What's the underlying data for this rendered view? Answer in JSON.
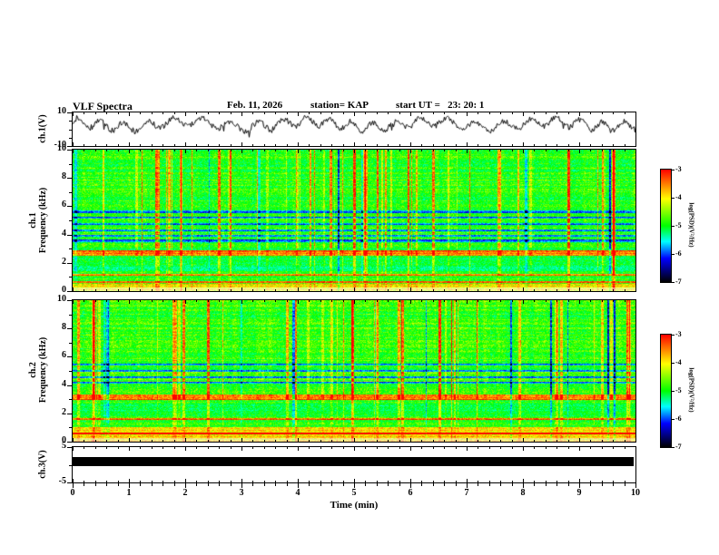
{
  "header": {
    "title": "VLF Spectra",
    "date": "Feb. 11, 2026",
    "station": "station= KAP",
    "start_ut": "start UT =   23: 20: 1"
  },
  "x_axis": {
    "label": "Time (min)",
    "min": 0,
    "max": 10,
    "major_ticks": [
      0,
      1,
      2,
      3,
      4,
      5,
      6,
      7,
      8,
      9,
      10
    ],
    "minor_step": 0.2
  },
  "colorbars": [
    {
      "label": "log(PSD)(V²/Hz)",
      "ticks": [
        -3,
        -4,
        -5,
        -6,
        -7
      ]
    },
    {
      "label": "log(PSD)(V²/Hz)",
      "ticks": [
        -3,
        -4,
        -5,
        -6,
        -7
      ]
    }
  ],
  "colormap": {
    "stops_low_to_high": [
      "#000000",
      "#0000ff",
      "#00ffff",
      "#00ff00",
      "#ffff00",
      "#ff0000"
    ]
  },
  "chart_data": [
    {
      "type": "line",
      "name": "ch1-waveform",
      "ylabel": "ch.1(V)",
      "ylim": [
        -10,
        10
      ],
      "ytick_major": [
        10,
        -10
      ],
      "ytick_minor": [
        5,
        0,
        -5
      ],
      "description": "dense noisy VLF amplitude trace oscillating roughly between -3 and 9 V over 10 minutes"
    },
    {
      "type": "heatmap",
      "name": "ch1-spectrogram",
      "ylabel_lines": [
        "ch.1",
        "Frequency (kHz)"
      ],
      "ylim": [
        0,
        10
      ],
      "ytick_major": [
        0,
        2,
        4,
        6,
        8,
        10
      ],
      "ytick_minor": [
        1,
        3,
        5,
        7,
        9
      ],
      "xlim": [
        0,
        10
      ],
      "features": {
        "base_level": 0.55,
        "red_bands_khz": [
          [
            2.5,
            2.85
          ],
          [
            1.08,
            1.22
          ],
          [
            0.58,
            0.68
          ]
        ],
        "blue_lines_khz": [
          3.55,
          3.9,
          4.3,
          4.75,
          5.2,
          5.6
        ],
        "bright_below_khz": 0.5,
        "dim_band_khz": [
          1.35,
          2.4
        ],
        "vertical_streaks": 60
      }
    },
    {
      "type": "heatmap",
      "name": "ch2-spectrogram",
      "ylabel_lines": [
        "ch.2",
        "Frequency (kHz)"
      ],
      "ylim": [
        0,
        10
      ],
      "ytick_major": [
        0,
        2,
        4,
        6,
        8,
        10
      ],
      "ytick_minor": [
        1,
        3,
        5,
        7,
        9
      ],
      "xlim": [
        0,
        10
      ],
      "features": {
        "base_level": 0.56,
        "red_bands_khz": [
          [
            2.95,
            3.35
          ],
          [
            1.5,
            1.62
          ],
          [
            0.5,
            0.62
          ]
        ],
        "blue_lines_khz": [
          4.15,
          4.55,
          5.0,
          5.45
        ],
        "bright_below_khz": 1.0,
        "dim_band_khz": [
          1.8,
          2.7
        ],
        "vertical_streaks": 55
      }
    },
    {
      "type": "flat",
      "name": "ch3-saturated-bar",
      "ylabel": "ch.3(V)",
      "ylim": [
        -5,
        5
      ],
      "ytick_major": [
        5,
        -5
      ],
      "ytick_minor": [
        0
      ],
      "bar_value_range": [
        -0.9,
        2.1
      ],
      "description": "clipped channel rendered as a solid black horizontal bar across the full record"
    }
  ]
}
